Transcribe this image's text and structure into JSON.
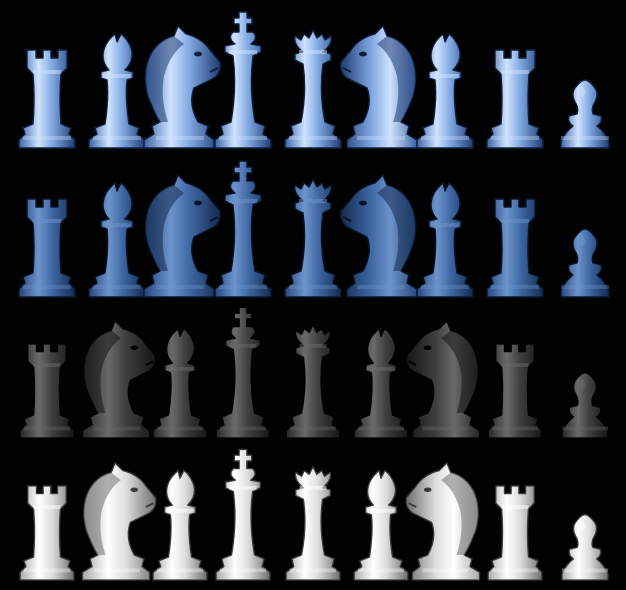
{
  "background": "#020203",
  "rows": [
    {
      "name": "light-blue",
      "colors": {
        "light": "#cfe3ff",
        "mid": "#7fa7e0",
        "dark": "#3d64a8",
        "deep": "#1f3c73",
        "stroke": "#0e1f3d"
      },
      "pieces": [
        "rook",
        "bishop",
        "knight",
        "king",
        "queen",
        "knight",
        "bishop",
        "rook",
        "pawn"
      ],
      "knight_facing": [
        "right",
        "left"
      ]
    },
    {
      "name": "dark-blue",
      "colors": {
        "light": "#6e94cc",
        "mid": "#3f67a3",
        "dark": "#25467c",
        "deep": "#142a4e",
        "stroke": "#081528"
      },
      "pieces": [
        "rook",
        "bishop",
        "knight",
        "king",
        "queen",
        "knight",
        "bishop",
        "rook",
        "pawn"
      ],
      "knight_facing": [
        "right",
        "left"
      ]
    },
    {
      "name": "dark-grey",
      "colors": {
        "light": "#6a6a6a",
        "mid": "#3e3e3e",
        "dark": "#262626",
        "deep": "#151515",
        "stroke": "#000000"
      },
      "pieces": [
        "rook",
        "knight",
        "bishop",
        "king",
        "queen",
        "bishop",
        "knight",
        "rook",
        "pawn"
      ],
      "knight_facing": [
        "right",
        "left"
      ]
    },
    {
      "name": "white",
      "colors": {
        "light": "#ffffff",
        "mid": "#dcdcdc",
        "dark": "#a9a9a9",
        "deep": "#6f6f6f",
        "stroke": "#3a3a3a"
      },
      "pieces": [
        "rook",
        "knight",
        "bishop",
        "king",
        "queen",
        "bishop",
        "knight",
        "rook",
        "pawn"
      ],
      "knight_facing": [
        "right",
        "left"
      ]
    }
  ]
}
